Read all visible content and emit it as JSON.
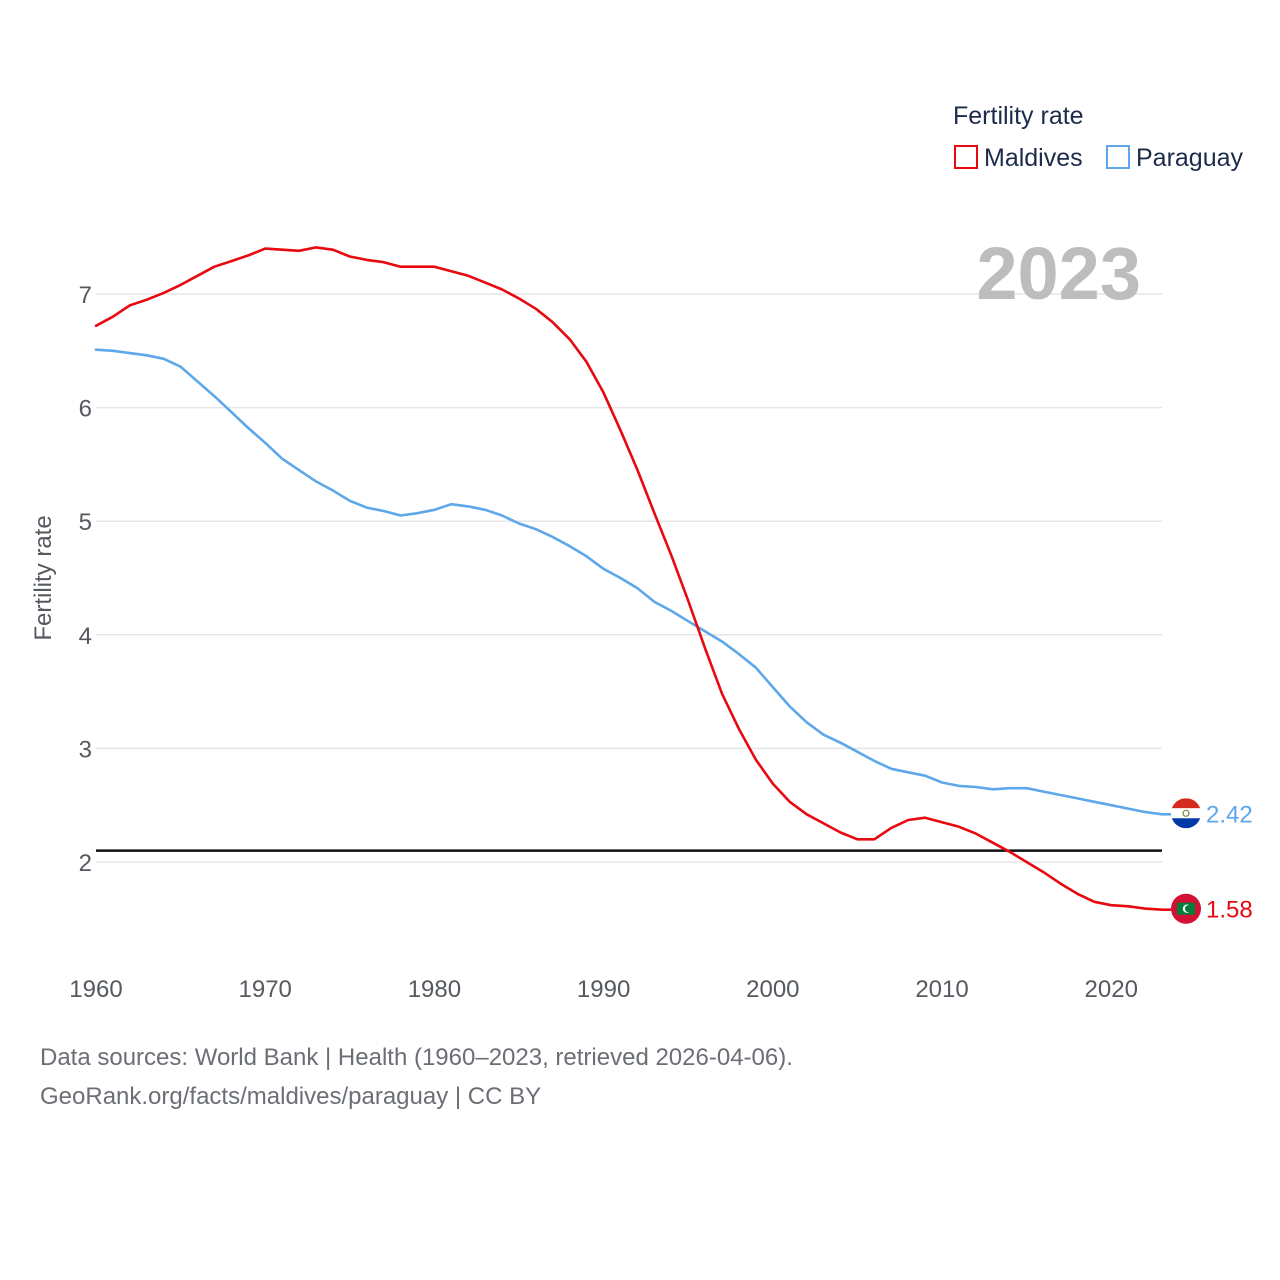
{
  "chart_data": {
    "type": "line",
    "legend_title": "Fertility rate",
    "ylabel": "Fertility rate",
    "xlabel": "",
    "year_label": "2023",
    "xlim": [
      1960,
      2023
    ],
    "ylim": [
      1.0,
      7.6
    ],
    "y_ticks": [
      2,
      3,
      4,
      5,
      6,
      7
    ],
    "x_ticks": [
      1960,
      1970,
      1980,
      1990,
      2000,
      2010,
      2020
    ],
    "reference_line": 2.1,
    "x": [
      1960,
      1961,
      1962,
      1963,
      1964,
      1965,
      1966,
      1967,
      1968,
      1969,
      1970,
      1971,
      1972,
      1973,
      1974,
      1975,
      1976,
      1977,
      1978,
      1979,
      1980,
      1981,
      1982,
      1983,
      1984,
      1985,
      1986,
      1987,
      1988,
      1989,
      1990,
      1991,
      1992,
      1993,
      1994,
      1995,
      1996,
      1997,
      1998,
      1999,
      2000,
      2001,
      2002,
      2003,
      2004,
      2005,
      2006,
      2007,
      2008,
      2009,
      2010,
      2011,
      2012,
      2013,
      2014,
      2015,
      2016,
      2017,
      2018,
      2019,
      2020,
      2021,
      2022,
      2023
    ],
    "series": [
      {
        "name": "Maldives",
        "color": "#e8080f",
        "end_label": "1.58",
        "flag_icon": "maldives-flag-icon",
        "values": [
          6.72,
          6.8,
          6.9,
          6.95,
          7.01,
          7.08,
          7.16,
          7.24,
          7.29,
          7.34,
          7.4,
          7.39,
          7.38,
          7.41,
          7.39,
          7.33,
          7.3,
          7.28,
          7.24,
          7.24,
          7.24,
          7.2,
          7.16,
          7.1,
          7.04,
          6.96,
          6.87,
          6.75,
          6.6,
          6.4,
          6.13,
          5.8,
          5.45,
          5.07,
          4.7,
          4.3,
          3.88,
          3.48,
          3.17,
          2.9,
          2.69,
          2.53,
          2.42,
          2.34,
          2.26,
          2.2,
          2.2,
          2.3,
          2.37,
          2.39,
          2.35,
          2.31,
          2.25,
          2.17,
          2.09,
          2.0,
          1.91,
          1.81,
          1.72,
          1.65,
          1.62,
          1.61,
          1.59,
          1.58
        ]
      },
      {
        "name": "Paraguay",
        "color": "#5da7ea",
        "end_label": "2.42",
        "flag_icon": "paraguay-flag-icon",
        "values": [
          6.51,
          6.5,
          6.48,
          6.46,
          6.43,
          6.36,
          6.23,
          6.1,
          5.96,
          5.82,
          5.69,
          5.55,
          5.45,
          5.35,
          5.27,
          5.18,
          5.12,
          5.09,
          5.05,
          5.07,
          5.1,
          5.15,
          5.13,
          5.1,
          5.05,
          4.98,
          4.93,
          4.86,
          4.78,
          4.69,
          4.58,
          4.5,
          4.41,
          4.29,
          4.21,
          4.12,
          4.03,
          3.94,
          3.83,
          3.71,
          3.54,
          3.37,
          3.23,
          3.12,
          3.05,
          2.97,
          2.89,
          2.82,
          2.79,
          2.76,
          2.7,
          2.67,
          2.66,
          2.64,
          2.65,
          2.65,
          2.62,
          2.59,
          2.56,
          2.53,
          2.5,
          2.47,
          2.44,
          2.42
        ]
      }
    ]
  },
  "footer": {
    "line1": "Data sources: World Bank | Health (1960–2023, retrieved 2026-04-06).",
    "line2": "GeoRank.org/facts/maldives/paraguay | CC BY"
  }
}
